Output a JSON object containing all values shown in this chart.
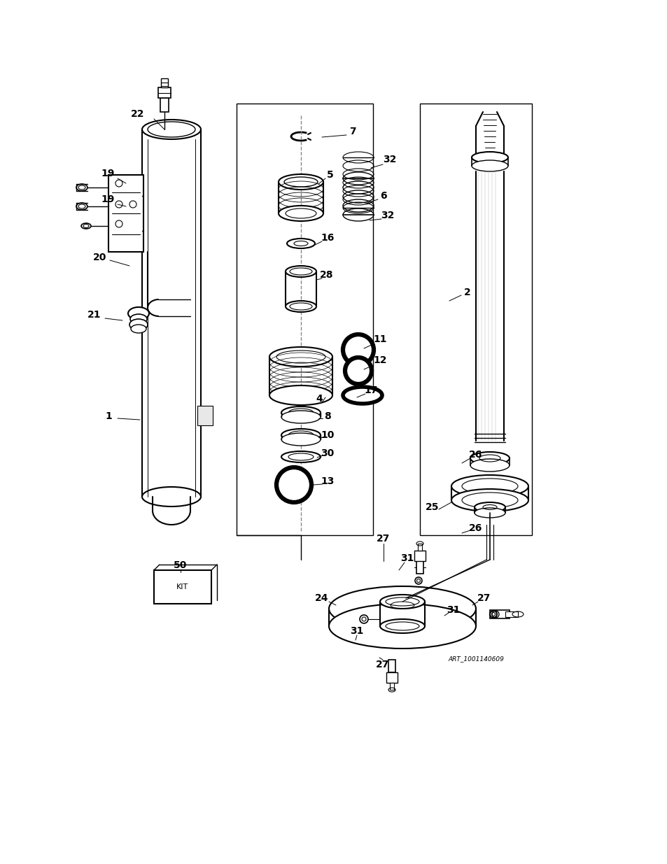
{
  "background_color": "#ffffff",
  "line_color": "#000000",
  "figure_width": 9.54,
  "figure_height": 12.35,
  "watermark": "ART_1001140609"
}
